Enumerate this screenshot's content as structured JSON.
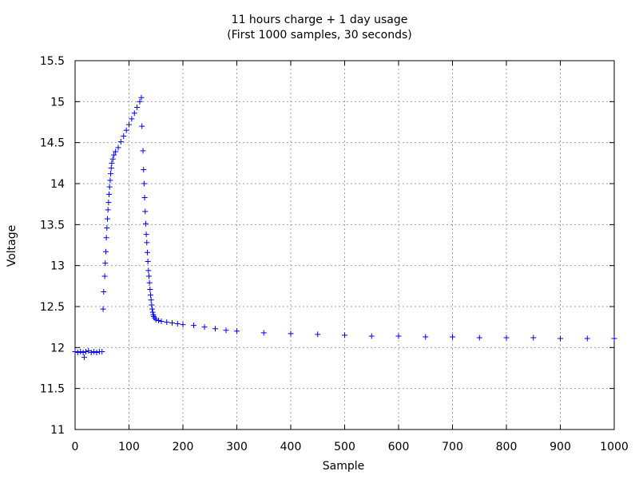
{
  "chart_data": {
    "type": "scatter",
    "title": "11 hours charge + 1 day usage",
    "subtitle": "(First 1000 samples, 30 seconds)",
    "xlabel": "Sample",
    "ylabel": "Voltage",
    "xlim": [
      0,
      1000
    ],
    "ylim": [
      11,
      15.5
    ],
    "xticks": [
      0,
      100,
      200,
      300,
      400,
      500,
      600,
      700,
      800,
      900,
      1000
    ],
    "yticks": [
      11,
      11.5,
      12,
      12.5,
      13,
      13.5,
      14,
      14.5,
      15,
      15.5
    ],
    "grid": true,
    "marker": "+",
    "color": "#0000ff",
    "series": [
      {
        "points": [
          [
            0,
            11.95
          ],
          [
            5,
            11.94
          ],
          [
            10,
            11.95
          ],
          [
            15,
            11.94
          ],
          [
            17,
            11.88
          ],
          [
            20,
            11.95
          ],
          [
            25,
            11.96
          ],
          [
            30,
            11.94
          ],
          [
            35,
            11.95
          ],
          [
            40,
            11.94
          ],
          [
            45,
            11.95
          ],
          [
            50,
            11.95
          ],
          [
            52,
            12.47
          ],
          [
            53,
            12.68
          ],
          [
            55,
            12.87
          ],
          [
            56,
            13.03
          ],
          [
            57,
            13.17
          ],
          [
            58,
            13.34
          ],
          [
            59,
            13.46
          ],
          [
            60,
            13.57
          ],
          [
            61,
            13.68
          ],
          [
            62,
            13.77
          ],
          [
            63,
            13.87
          ],
          [
            64,
            13.96
          ],
          [
            65,
            14.04
          ],
          [
            66,
            14.12
          ],
          [
            67,
            14.19
          ],
          [
            68,
            14.25
          ],
          [
            70,
            14.3
          ],
          [
            72,
            14.35
          ],
          [
            75,
            14.39
          ],
          [
            80,
            14.44
          ],
          [
            85,
            14.51
          ],
          [
            90,
            14.58
          ],
          [
            95,
            14.65
          ],
          [
            100,
            14.72
          ],
          [
            105,
            14.79
          ],
          [
            110,
            14.86
          ],
          [
            115,
            14.93
          ],
          [
            120,
            15.0
          ],
          [
            123,
            15.05
          ],
          [
            124,
            14.7
          ],
          [
            126,
            14.4
          ],
          [
            127,
            14.17
          ],
          [
            128,
            14.0
          ],
          [
            129,
            13.83
          ],
          [
            130,
            13.66
          ],
          [
            131,
            13.51
          ],
          [
            132,
            13.38
          ],
          [
            133,
            13.28
          ],
          [
            134,
            13.16
          ],
          [
            135,
            13.05
          ],
          [
            136,
            12.94
          ],
          [
            137,
            12.87
          ],
          [
            138,
            12.79
          ],
          [
            139,
            12.71
          ],
          [
            140,
            12.64
          ],
          [
            141,
            12.58
          ],
          [
            142,
            12.52
          ],
          [
            143,
            12.47
          ],
          [
            144,
            12.43
          ],
          [
            145,
            12.4
          ],
          [
            146,
            12.38
          ],
          [
            148,
            12.36
          ],
          [
            150,
            12.34
          ],
          [
            155,
            12.33
          ],
          [
            160,
            12.32
          ],
          [
            170,
            12.31
          ],
          [
            180,
            12.3
          ],
          [
            190,
            12.29
          ],
          [
            200,
            12.28
          ],
          [
            220,
            12.27
          ],
          [
            240,
            12.25
          ],
          [
            260,
            12.23
          ],
          [
            280,
            12.21
          ],
          [
            300,
            12.2
          ],
          [
            350,
            12.18
          ],
          [
            400,
            12.17
          ],
          [
            450,
            12.16
          ],
          [
            500,
            12.15
          ],
          [
            550,
            12.14
          ],
          [
            600,
            12.14
          ],
          [
            650,
            12.13
          ],
          [
            700,
            12.13
          ],
          [
            750,
            12.12
          ],
          [
            800,
            12.12
          ],
          [
            850,
            12.12
          ],
          [
            900,
            12.11
          ],
          [
            950,
            12.11
          ],
          [
            1000,
            12.11
          ]
        ]
      }
    ]
  }
}
